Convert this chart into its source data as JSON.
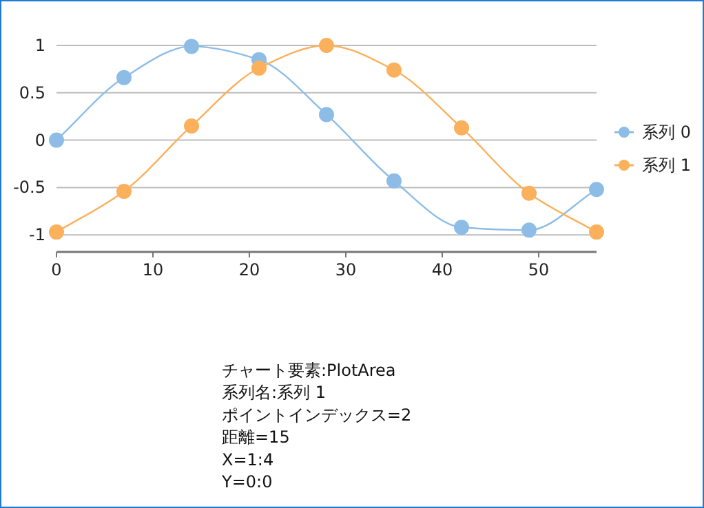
{
  "chart_data": {
    "type": "line",
    "x": [
      0,
      7,
      14,
      21,
      28,
      35,
      42,
      49,
      56
    ],
    "series": [
      {
        "name": "系列 0",
        "color": "#8dbde6",
        "values": [
          0,
          0.66,
          0.99,
          0.85,
          0.27,
          -0.43,
          -0.92,
          -0.95,
          -0.52
        ]
      },
      {
        "name": "系列 1",
        "color": "#fbb05c",
        "values": [
          -0.97,
          -0.54,
          0.15,
          0.76,
          1.0,
          0.74,
          0.13,
          -0.56,
          -0.97
        ]
      }
    ],
    "xlim": [
      0,
      56
    ],
    "xticks": [
      0,
      10,
      20,
      30,
      40,
      50
    ],
    "ylim": [
      -1.18,
      1
    ],
    "yticks": [
      -1,
      -0.5,
      0,
      0.5,
      1
    ],
    "grid": "y",
    "legend": "right",
    "marker": "circle",
    "annotations": [
      "チャート要素:PlotArea",
      "系列名:系列 1",
      "ポイントインデックス=2",
      "距離=15",
      "X=1:4",
      "Y=0:0"
    ]
  }
}
